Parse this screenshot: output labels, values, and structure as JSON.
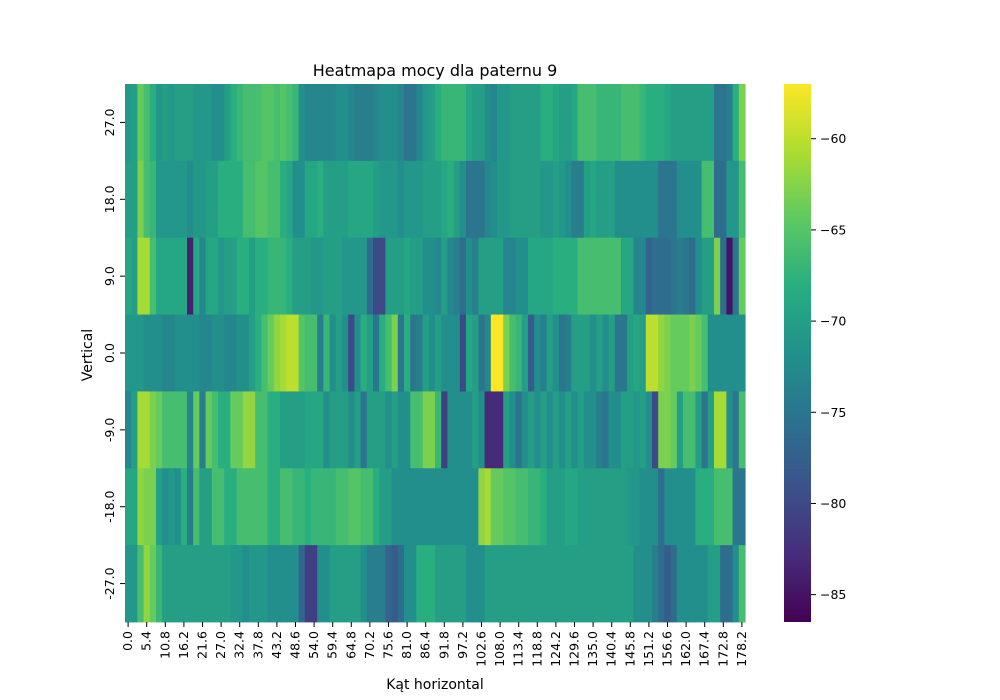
{
  "chart_data": {
    "type": "heatmap",
    "title": "Heatmapa mocy dla paternu 9",
    "xlabel": "Kąt horizontal",
    "ylabel": "Vertical",
    "x_tick_labels": [
      "0.0",
      "5.4",
      "10.8",
      "16.2",
      "21.6",
      "27.0",
      "32.4",
      "37.8",
      "43.2",
      "48.6",
      "54.0",
      "59.4",
      "64.8",
      "70.2",
      "75.6",
      "81.0",
      "86.4",
      "91.8",
      "97.2",
      "102.6",
      "108.0",
      "113.4",
      "118.8",
      "124.2",
      "129.6",
      "135.0",
      "140.4",
      "145.8",
      "151.2",
      "156.6",
      "162.0",
      "167.4",
      "172.8",
      "178.2"
    ],
    "x_tick_step_deg": 5.4,
    "x_step_deg": 1.8,
    "x_count": 100,
    "y_tick_labels": [
      "27.0",
      "18.0",
      "9.0",
      "0.0",
      "-9.0",
      "-18.0",
      "-27.0"
    ],
    "colorbar": {
      "colormap": "viridis",
      "vmin": -86.5,
      "vmax": -57,
      "ticks": [
        -60,
        -65,
        -70,
        -75,
        -80,
        -85
      ]
    },
    "rows": [
      {
        "vertical": "27.0",
        "values": [
          -71,
          -70,
          -64,
          -66,
          -68,
          -71,
          -70,
          -71,
          -70,
          -70,
          -70,
          -71,
          -71,
          -71,
          -72,
          -72,
          -70,
          -68,
          -67,
          -66,
          -66,
          -66,
          -65,
          -65,
          -66,
          -65,
          -66,
          -67,
          -72,
          -73,
          -73,
          -73,
          -73,
          -73,
          -72,
          -72,
          -73,
          -74,
          -74,
          -74,
          -73,
          -72,
          -72,
          -72,
          -73,
          -75,
          -75,
          -73,
          -71,
          -70,
          -68,
          -67,
          -67,
          -67,
          -67,
          -69,
          -70,
          -70,
          -72,
          -73,
          -71,
          -71,
          -70,
          -70,
          -70,
          -70,
          -70,
          -68,
          -68,
          -69,
          -70,
          -70,
          -69,
          -66,
          -66,
          -66,
          -67,
          -67,
          -67,
          -67,
          -66,
          -66,
          -66,
          -67,
          -68,
          -68,
          -68,
          -69,
          -70,
          -70,
          -70,
          -70,
          -70,
          -70,
          -70,
          -75,
          -75,
          -74,
          -68,
          -63
        ]
      },
      {
        "vertical": "18.0",
        "values": [
          -70,
          -70,
          -63,
          -66,
          -67,
          -71,
          -71,
          -71,
          -71,
          -71,
          -72,
          -71,
          -71,
          -70,
          -70,
          -68,
          -68,
          -68,
          -68,
          -66,
          -66,
          -65,
          -65,
          -66,
          -66,
          -68,
          -69,
          -72,
          -72,
          -69,
          -69,
          -68,
          -70,
          -70,
          -70,
          -70,
          -69,
          -69,
          -69,
          -69,
          -70,
          -71,
          -71,
          -71,
          -72,
          -71,
          -71,
          -71,
          -70,
          -70,
          -70,
          -69,
          -68,
          -70,
          -72,
          -75,
          -75,
          -75,
          -73,
          -72,
          -71,
          -71,
          -70,
          -70,
          -70,
          -70,
          -70,
          -71,
          -71,
          -70,
          -71,
          -72,
          -74,
          -74,
          -70,
          -69,
          -70,
          -70,
          -70,
          -72,
          -72,
          -72,
          -72,
          -72,
          -72,
          -72,
          -75,
          -75,
          -75,
          -72,
          -72,
          -72,
          -72,
          -66,
          -66,
          -76,
          -76,
          -71,
          -71,
          -66
        ]
      },
      {
        "vertical": "9.0",
        "values": [
          -69,
          -70,
          -61,
          -61,
          -66,
          -69,
          -69,
          -69,
          -69,
          -69,
          -84,
          -69,
          -73,
          -69,
          -69,
          -71,
          -70,
          -70,
          -68,
          -68,
          -70,
          -68,
          -68,
          -67,
          -67,
          -67,
          -68,
          -70,
          -70,
          -70,
          -71,
          -71,
          -70,
          -70,
          -70,
          -71,
          -71,
          -71,
          -71,
          -76,
          -80,
          -80,
          -70,
          -70,
          -70,
          -69,
          -70,
          -70,
          -72,
          -72,
          -73,
          -70,
          -73,
          -74,
          -76,
          -72,
          -74,
          -70,
          -70,
          -70,
          -70,
          -73,
          -73,
          -72,
          -72,
          -69,
          -69,
          -69,
          -69,
          -68,
          -68,
          -68,
          -68,
          -66,
          -66,
          -66,
          -66,
          -66,
          -66,
          -66,
          -69,
          -69,
          -73,
          -73,
          -77,
          -76,
          -76,
          -76,
          -75,
          -74,
          -75,
          -76,
          -72,
          -70,
          -70,
          -63,
          -76,
          -85,
          -75,
          -64
        ]
      },
      {
        "vertical": "0.0",
        "values": [
          -71,
          -71,
          -71,
          -72,
          -72,
          -72,
          -73,
          -73,
          -72,
          -72,
          -72,
          -72,
          -73,
          -73,
          -72,
          -72,
          -73,
          -73,
          -72,
          -72,
          -70,
          -68,
          -66,
          -64,
          -62,
          -61,
          -60,
          -60,
          -65,
          -66,
          -66,
          -74,
          -67,
          -72,
          -70,
          -72,
          -80,
          -72,
          -68,
          -70,
          -75,
          -68,
          -66,
          -63,
          -75,
          -68,
          -75,
          -74,
          -70,
          -72,
          -70,
          -72,
          -72,
          -72,
          -80,
          -69,
          -70,
          -75,
          -73,
          -57,
          -57,
          -63,
          -66,
          -67,
          -70,
          -78,
          -72,
          -74,
          -70,
          -72,
          -75,
          -74,
          -70,
          -70,
          -70,
          -72,
          -70,
          -72,
          -70,
          -75,
          -75,
          -70,
          -69,
          -70,
          -60,
          -60,
          -62,
          -63,
          -64,
          -64,
          -64,
          -63,
          -64,
          -66,
          -72,
          -72,
          -72,
          -72,
          -72,
          -72
        ]
      },
      {
        "vertical": "-9.0",
        "values": [
          -73,
          -70,
          -61,
          -61,
          -63,
          -64,
          -66,
          -66,
          -66,
          -66,
          -73,
          -64,
          -74,
          -64,
          -66,
          -68,
          -68,
          -64,
          -64,
          -62,
          -62,
          -66,
          -66,
          -68,
          -68,
          -70,
          -70,
          -70,
          -70,
          -69,
          -69,
          -69,
          -72,
          -70,
          -70,
          -70,
          -72,
          -70,
          -75,
          -70,
          -70,
          -70,
          -72,
          -70,
          -72,
          -72,
          -66,
          -66,
          -63,
          -63,
          -67,
          -81,
          -72,
          -72,
          -72,
          -72,
          -70,
          -72,
          -83,
          -83,
          -83,
          -70,
          -72,
          -75,
          -72,
          -70,
          -72,
          -70,
          -72,
          -70,
          -72,
          -70,
          -72,
          -70,
          -72,
          -72,
          -74,
          -75,
          -72,
          -72,
          -70,
          -70,
          -71,
          -70,
          -72,
          -80,
          -63,
          -63,
          -64,
          -70,
          -66,
          -66,
          -70,
          -75,
          -70,
          -61,
          -61,
          -72,
          -75,
          -66
        ]
      },
      {
        "vertical": "-18.0",
        "values": [
          -69,
          -69,
          -62,
          -63,
          -63,
          -70,
          -72,
          -71,
          -72,
          -68,
          -74,
          -66,
          -70,
          -70,
          -66,
          -66,
          -68,
          -68,
          -66,
          -66,
          -66,
          -66,
          -66,
          -68,
          -68,
          -66,
          -66,
          -67,
          -67,
          -68,
          -67,
          -67,
          -67,
          -67,
          -66,
          -66,
          -65,
          -65,
          -66,
          -66,
          -68,
          -70,
          -70,
          -72,
          -72,
          -72,
          -72,
          -72,
          -72,
          -72,
          -72,
          -72,
          -72,
          -72,
          -72,
          -72,
          -72,
          -62,
          -61,
          -64,
          -64,
          -65,
          -65,
          -66,
          -66,
          -67,
          -67,
          -68,
          -70,
          -70,
          -70,
          -69,
          -69,
          -70,
          -70,
          -70,
          -70,
          -70,
          -70,
          -70,
          -70,
          -71,
          -71,
          -72,
          -72,
          -72,
          -76,
          -72,
          -72,
          -72,
          -72,
          -72,
          -68,
          -68,
          -68,
          -66,
          -66,
          -66,
          -75,
          -75
        ]
      },
      {
        "vertical": "-27.0",
        "values": [
          -71,
          -71,
          -66,
          -62,
          -64,
          -67,
          -70,
          -70,
          -70,
          -70,
          -70,
          -70,
          -70,
          -70,
          -70,
          -70,
          -70,
          -71,
          -71,
          -72,
          -71,
          -71,
          -71,
          -72,
          -72,
          -72,
          -72,
          -72,
          -77,
          -81,
          -81,
          -72,
          -72,
          -70,
          -70,
          -70,
          -70,
          -70,
          -72,
          -74,
          -74,
          -74,
          -77,
          -78,
          -76,
          -72,
          -72,
          -68,
          -68,
          -68,
          -70,
          -70,
          -70,
          -70,
          -70,
          -72,
          -72,
          -72,
          -70,
          -70,
          -70,
          -70,
          -70,
          -70,
          -70,
          -70,
          -70,
          -70,
          -70,
          -70,
          -70,
          -70,
          -70,
          -70,
          -70,
          -70,
          -70,
          -70,
          -70,
          -70,
          -70,
          -70,
          -72,
          -72,
          -72,
          -74,
          -76,
          -78,
          -76,
          -72,
          -72,
          -72,
          -72,
          -72,
          -70,
          -70,
          -76,
          -76,
          -72,
          -66
        ]
      }
    ]
  }
}
